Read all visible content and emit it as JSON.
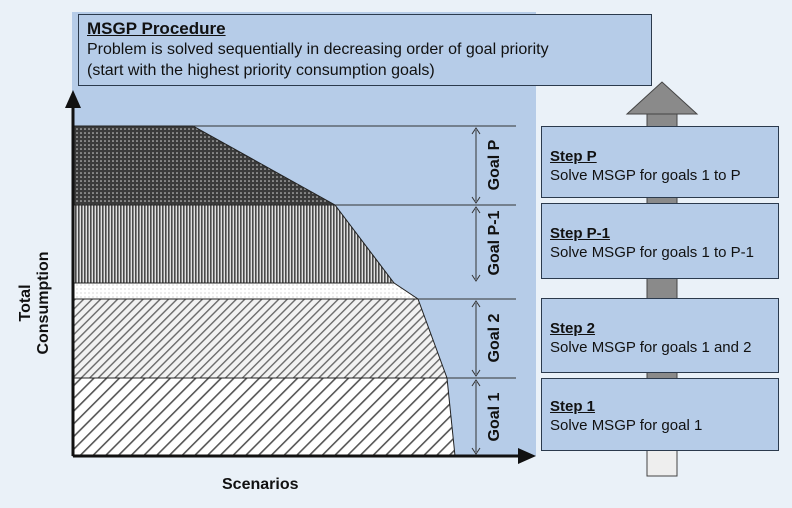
{
  "procedure": {
    "title": "MSGP Procedure",
    "line1": "Problem is solved sequentially in decreasing order of goal priority",
    "line2": "(start with the highest priority consumption goals)"
  },
  "axes": {
    "ylabel_line1": "Total",
    "ylabel_line2": "Consumption",
    "xlabel": "Scenarios"
  },
  "goals": [
    {
      "label": "Goal P",
      "pattern": "dots"
    },
    {
      "label": "Goal P-1",
      "pattern": "vertical-lines"
    },
    {
      "label": "Goal 2",
      "pattern": "diagonal-lines"
    },
    {
      "label": "Goal 1",
      "pattern": "diagonal-lines"
    }
  ],
  "steps": [
    {
      "title": "Step P",
      "desc": "Solve MSGP for goals 1 to P"
    },
    {
      "title": "Step P-1",
      "desc": "Solve MSGP for goals 1 to P-1"
    },
    {
      "title": "Step 2",
      "desc": "Solve MSGP for goals 1 and 2"
    },
    {
      "title": "Step 1",
      "desc": "Solve MSGP for goal 1"
    }
  ],
  "colors": {
    "panel": "#b6cce8",
    "background": "#eaf1f8",
    "arrow": "#8a8a8a",
    "axis": "#111111"
  }
}
